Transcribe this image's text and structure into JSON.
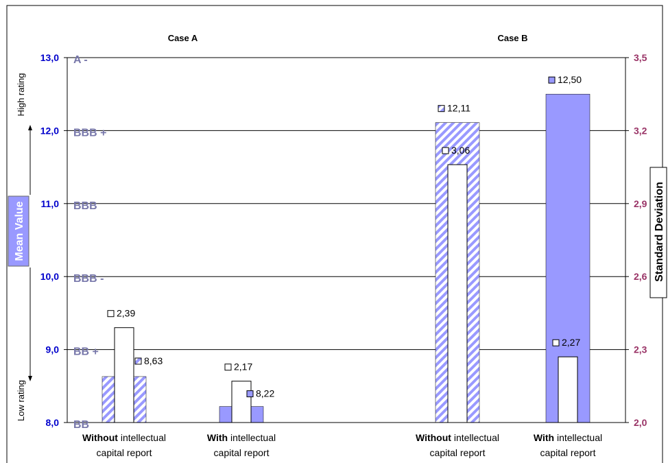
{
  "chart_data": {
    "type": "bar",
    "title": "",
    "groups": [
      {
        "case": "Case A",
        "bars": [
          {
            "label_bold": "Without",
            "label_rest": " intellectual",
            "label_line2": "capital report",
            "mean": 8.63,
            "std": 2.39,
            "mean_style": "hatched"
          },
          {
            "label_bold": "With",
            "label_rest": " intellectual",
            "label_line2": "capital report",
            "mean": 8.22,
            "std": 2.17,
            "mean_style": "solid"
          }
        ]
      },
      {
        "case": "Case B",
        "bars": [
          {
            "label_bold": "Without",
            "label_rest": " intellectual",
            "label_line2": "capital report",
            "mean": 12.11,
            "std": 3.06,
            "mean_style": "hatched"
          },
          {
            "label_bold": "With",
            "label_rest": " intellectual",
            "label_line2": "capital report",
            "mean": 12.5,
            "std": 2.27,
            "mean_style": "solid"
          }
        ]
      }
    ],
    "y_left": {
      "label": "Mean Value",
      "ylim": [
        8.0,
        13.0
      ],
      "ticks": [
        "8,0",
        "9,0",
        "10,0",
        "11,0",
        "12,0",
        "13,0"
      ],
      "tick_values": [
        8,
        9,
        10,
        11,
        12,
        13
      ]
    },
    "y_right": {
      "label": "Standard Deviation",
      "ylim": [
        2.0,
        3.5
      ],
      "ticks": [
        "2,0",
        "2,3",
        "2,6",
        "2,9",
        "3,2",
        "3,5"
      ],
      "tick_values": [
        2.0,
        2.3,
        2.6,
        2.9,
        3.2,
        3.5
      ]
    },
    "ratings": [
      {
        "text": "BB",
        "value": 8
      },
      {
        "text": "BB +",
        "value": 9
      },
      {
        "text": "BBB -",
        "value": 10
      },
      {
        "text": "BBB",
        "value": 11
      },
      {
        "text": "BBB +",
        "value": 12
      },
      {
        "text": "A -",
        "value": 13
      }
    ],
    "side_labels": {
      "top": "High rating",
      "bottom": "Low rating"
    },
    "grid": true,
    "colors": {
      "mean_fill": "#9999ff",
      "std_fill": "#ffffff",
      "left_axis": "#0000cc",
      "right_axis": "#993366",
      "rating": "#7777aa",
      "hatch_stripe": "#9999ff"
    }
  }
}
